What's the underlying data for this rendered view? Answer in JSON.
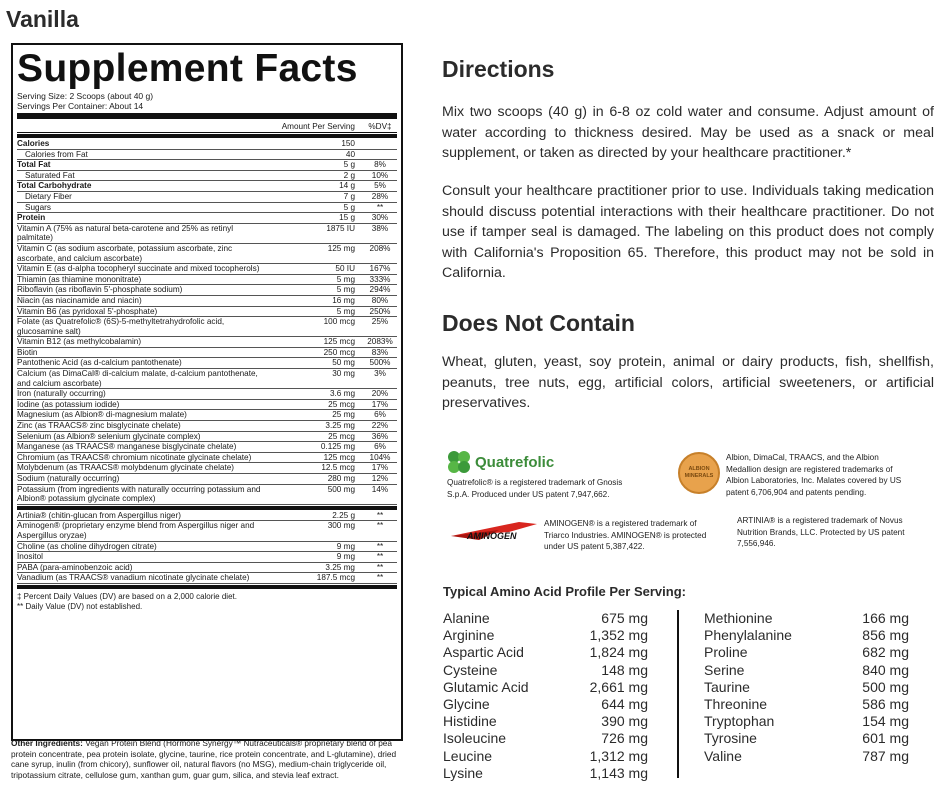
{
  "variant": "Vanilla",
  "panel": {
    "title": "Supplement Facts",
    "serving_size": "Serving Size: 2 Scoops (about 40 g)",
    "servings_per": "Servings Per Container: About 14",
    "col_amount": "Amount Per Serving",
    "col_dv": "%DV‡",
    "rows": [
      {
        "name": "Calories",
        "amount": "150",
        "dv": "",
        "style": "bold"
      },
      {
        "name": "Calories from Fat",
        "amount": "40",
        "dv": "",
        "style": "ind"
      },
      {
        "name": "Total Fat",
        "amount": "5 g",
        "dv": "8%",
        "style": "bold"
      },
      {
        "name": "Saturated Fat",
        "amount": "2 g",
        "dv": "10%",
        "style": "ind"
      },
      {
        "name": "Total Carbohydrate",
        "amount": "14 g",
        "dv": "5%",
        "style": "bold"
      },
      {
        "name": "Dietary Fiber",
        "amount": "7 g",
        "dv": "28%",
        "style": "ind"
      },
      {
        "name": "Sugars",
        "amount": "5 g",
        "dv": "**",
        "style": "ind"
      },
      {
        "name": "Protein",
        "amount": "15 g",
        "dv": "30%",
        "style": "bold"
      },
      {
        "name": "Vitamin A (75% as natural beta-carotene and 25% as retinyl palmitate)",
        "amount": "1875 IU",
        "dv": "38%",
        "style": ""
      },
      {
        "name": "Vitamin C (as sodium ascorbate, potassium ascorbate, zinc ascorbate, and calcium ascorbate)",
        "amount": "125 mg",
        "dv": "208%",
        "style": "tall"
      },
      {
        "name": "Vitamin E (as d-alpha tocopheryl succinate and mixed tocopherols)",
        "amount": "50 IU",
        "dv": "167%",
        "style": ""
      },
      {
        "name": "Thiamin (as thiamine mononitrate)",
        "amount": "5 mg",
        "dv": "333%",
        "style": ""
      },
      {
        "name": "Riboflavin (as riboflavin 5'-phosphate sodium)",
        "amount": "5 mg",
        "dv": "294%",
        "style": ""
      },
      {
        "name": "Niacin (as niacinamide and niacin)",
        "amount": "16 mg",
        "dv": "80%",
        "style": ""
      },
      {
        "name": "Vitamin B6 (as pyridoxal 5'-phosphate)",
        "amount": "5 mg",
        "dv": "250%",
        "style": ""
      },
      {
        "name": "Folate (as Quatrefolic® (6S)-5-methyltetrahydrofolic acid, glucosamine salt)",
        "amount": "100 mcg",
        "dv": "25%",
        "style": ""
      },
      {
        "name": "Vitamin B12 (as methylcobalamin)",
        "amount": "125 mcg",
        "dv": "2083%",
        "style": ""
      },
      {
        "name": "Biotin",
        "amount": "250 mcg",
        "dv": "83%",
        "style": ""
      },
      {
        "name": "Pantothenic Acid (as d-calcium pantothenate)",
        "amount": "50 mg",
        "dv": "500%",
        "style": ""
      },
      {
        "name": "Calcium (as DimaCal® di-calcium malate, d-calcium pantothenate, and calcium ascorbate)",
        "amount": "30 mg",
        "dv": "3%",
        "style": "tall"
      },
      {
        "name": "Iron (naturally occurring)",
        "amount": "3.6 mg",
        "dv": "20%",
        "style": ""
      },
      {
        "name": "Iodine (as potassium iodide)",
        "amount": "25 mcg",
        "dv": "17%",
        "style": ""
      },
      {
        "name": "Magnesium (as Albion® di-magnesium malate)",
        "amount": "25 mg",
        "dv": "6%",
        "style": ""
      },
      {
        "name": "Zinc (as TRAACS® zinc bisglycinate chelate)",
        "amount": "3.25 mg",
        "dv": "22%",
        "style": ""
      },
      {
        "name": "Selenium (as Albion® selenium glycinate complex)",
        "amount": "25 mcg",
        "dv": "36%",
        "style": ""
      },
      {
        "name": "Manganese (as TRAACS® manganese bisglycinate chelate)",
        "amount": "0.125 mg",
        "dv": "6%",
        "style": ""
      },
      {
        "name": "Chromium (as TRAACS® chromium nicotinate glycinate chelate)",
        "amount": "125 mcg",
        "dv": "104%",
        "style": ""
      },
      {
        "name": "Molybdenum (as TRAACS® molybdenum glycinate chelate)",
        "amount": "12.5 mcg",
        "dv": "17%",
        "style": ""
      },
      {
        "name": "Sodium (naturally occurring)",
        "amount": "280 mg",
        "dv": "12%",
        "style": ""
      },
      {
        "name": "Potassium (from ingredients with naturally occurring potassium and Albion® potassium glycinate complex)",
        "amount": "500 mg",
        "dv": "14%",
        "style": "tall"
      }
    ],
    "rows2": [
      {
        "name": "Artinia® (chitin-glucan from Aspergillus niger)",
        "amount": "2.25 g",
        "dv": "**",
        "style": ""
      },
      {
        "name": "Aminogen® (proprietary enzyme blend from Aspergillus niger and Aspergillus oryzae)",
        "amount": "300 mg",
        "dv": "**",
        "style": "tall"
      },
      {
        "name": "Choline (as choline dihydrogen citrate)",
        "amount": "9 mg",
        "dv": "**",
        "style": ""
      },
      {
        "name": "Inositol",
        "amount": "9 mg",
        "dv": "**",
        "style": ""
      },
      {
        "name": "PABA (para-aminobenzoic acid)",
        "amount": "3.25 mg",
        "dv": "**",
        "style": ""
      },
      {
        "name": "Vanadium (as TRAACS® vanadium nicotinate glycinate chelate)",
        "amount": "187.5 mcg",
        "dv": "**",
        "style": ""
      }
    ],
    "footnote1": "‡ Percent Daily Values (DV) are based on a 2,000 calorie diet.",
    "footnote2": "** Daily Value (DV) not established.",
    "other_label": "Other Ingredients:",
    "other_text": " Vegan Protein Blend (Hormone Synergy™ Nutraceuticals® proprietary blend of pea protein concentrate, pea protein isolate, glycine, taurine, rice protein concentrate, and L-glutamine), dried cane syrup, inulin (from chicory), sunflower oil, natural flavors (no MSG), medium-chain triglyceride oil, tripotassium citrate, cellulose gum, xanthan gum, guar gum, silica, and stevia leaf extract."
  },
  "directions": {
    "heading": "Directions",
    "p1": "Mix two scoops (40 g) in 6-8 oz cold water and consume. Adjust amount of water according to thickness desired. May be used as a snack or meal supplement, or taken as directed by your healthcare practitioner.*",
    "p2": "Consult your healthcare practitioner prior to use. Individuals taking medication should discuss potential interactions with their healthcare practitioner. Do not use if tamper seal is damaged. The labeling on this product does not comply with California's Proposition 65. Therefore, this product may not be sold in California."
  },
  "does_not_contain": {
    "heading": "Does Not Contain",
    "text": "Wheat, gluten, yeast, soy protein, animal or dairy products, fish, shellfish, peanuts, tree nuts, egg, artificial colors, artificial sweeteners, or artificial preservatives."
  },
  "trademarks": {
    "quatrefolic_logo": "Quatrefolic",
    "quatrefolic_note": "Quatrefolic® is a registered trademark of Gnosis S.p.A. Produced under US patent 7,947,662.",
    "albion_logo_text": "ALBION MINERALS",
    "albion_note": "Albion, DimaCal, TRAACS, and the Albion Medallion design are registered trademarks of Albion Laboratories, Inc. Malates covered by US patent 6,706,904 and patents pending.",
    "aminogen_logo": "AMINOGEN",
    "aminogen_note": "AMINOGEN® is a registered trademark of Triarco Industries. AMINOGEN® is protected under US patent 5,387,422.",
    "artinia_note": "ARTINIA® is a registered trademark of Novus Nutrition Brands, LLC. Protected by US patent 7,556,946."
  },
  "amino": {
    "title": "Typical Amino Acid Profile Per Serving:",
    "left": [
      {
        "name": "Alanine",
        "value": "675 mg"
      },
      {
        "name": "Arginine",
        "value": "1,352 mg"
      },
      {
        "name": "Aspartic Acid",
        "value": "1,824 mg"
      },
      {
        "name": "Cysteine",
        "value": "148 mg"
      },
      {
        "name": "Glutamic Acid",
        "value": "2,661 mg"
      },
      {
        "name": "Glycine",
        "value": "644 mg"
      },
      {
        "name": "Histidine",
        "value": "390 mg"
      },
      {
        "name": "Isoleucine",
        "value": "726 mg"
      },
      {
        "name": "Leucine",
        "value": "1,312 mg"
      },
      {
        "name": "Lysine",
        "value": "1,143 mg"
      }
    ],
    "right": [
      {
        "name": "Methionine",
        "value": "166 mg"
      },
      {
        "name": "Phenylalanine",
        "value": "856 mg"
      },
      {
        "name": "Proline",
        "value": "682 mg"
      },
      {
        "name": "Serine",
        "value": "840 mg"
      },
      {
        "name": "Taurine",
        "value": "500 mg"
      },
      {
        "name": "Threonine",
        "value": "586 mg"
      },
      {
        "name": "Tryptophan",
        "value": "154 mg"
      },
      {
        "name": "Tyrosine",
        "value": "601 mg"
      },
      {
        "name": "Valine",
        "value": "787 mg"
      }
    ]
  }
}
